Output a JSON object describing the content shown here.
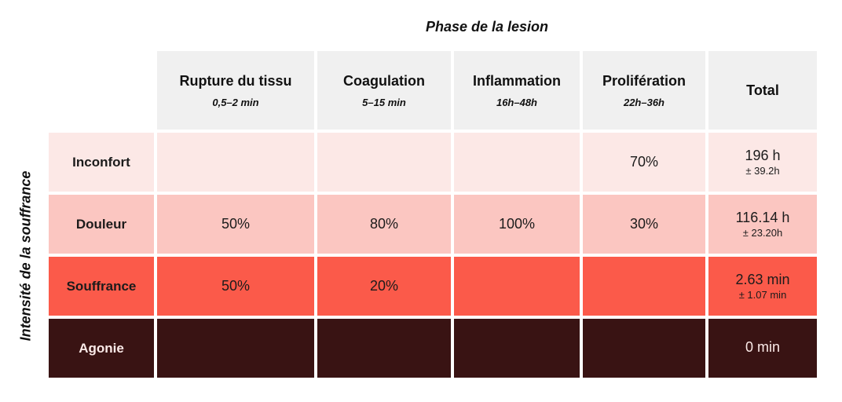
{
  "title": "Phase de la lesion",
  "y_axis_label": "Intensité de la souffrance",
  "colors": {
    "header_bg": "#f0f0f0",
    "row_inconfort": "#fce8e6",
    "row_douleur": "#fbc6c1",
    "row_souffrance": "#fb5a4a",
    "row_agonie": "#391313",
    "text_dark": "#1b1b1b",
    "text_light": "#fbeae8"
  },
  "columns": [
    {
      "label": "Rupture du tissu",
      "range": "0,5–2 min"
    },
    {
      "label": "Coagulation",
      "range": "5–15 min"
    },
    {
      "label": "Inflammation",
      "range": "16h–48h"
    },
    {
      "label": "Prolifération",
      "range": "22h–36h"
    },
    {
      "label": "Total",
      "range": ""
    }
  ],
  "rows": [
    {
      "label": "Inconfort",
      "bg": "#fce8e6",
      "fg": "#1b1b1b",
      "cells": [
        "",
        "",
        "",
        "70%"
      ],
      "total": "196 h",
      "total_err": "± 39.2h"
    },
    {
      "label": "Douleur",
      "bg": "#fbc6c1",
      "fg": "#1b1b1b",
      "cells": [
        "50%",
        "80%",
        "100%",
        "30%"
      ],
      "total": "116.14 h",
      "total_err": "± 23.20h"
    },
    {
      "label": "Souffrance",
      "bg": "#fb5a4a",
      "fg": "#1b1b1b",
      "cells": [
        "50%",
        "20%",
        "",
        ""
      ],
      "total": "2.63 min",
      "total_err": "± 1.07 min"
    },
    {
      "label": "Agonie",
      "bg": "#391313",
      "fg": "#fbeae8",
      "cells": [
        "",
        "",
        "",
        ""
      ],
      "total": "0 min",
      "total_err": ""
    }
  ],
  "chart_data": {
    "type": "heatmap",
    "title": "Phase de la lesion",
    "ylabel": "Intensité de la souffrance",
    "columns": [
      "Rupture du tissu",
      "Coagulation",
      "Inflammation",
      "Prolifération"
    ],
    "column_durations": [
      "0,5–2 min",
      "5–15 min",
      "16h–48h",
      "22h–36h"
    ],
    "rows": [
      "Inconfort",
      "Douleur",
      "Souffrance",
      "Agonie"
    ],
    "values_percent": [
      [
        null,
        null,
        null,
        70
      ],
      [
        50,
        80,
        100,
        30
      ],
      [
        50,
        20,
        null,
        null
      ],
      [
        null,
        null,
        null,
        null
      ]
    ],
    "totals": [
      {
        "value": "196 h",
        "error": "± 39.2h"
      },
      {
        "value": "116.14 h",
        "error": "± 23.20h"
      },
      {
        "value": "2.63 min",
        "error": "± 1.07 min"
      },
      {
        "value": "0 min",
        "error": ""
      }
    ],
    "row_colors": [
      "#fce8e6",
      "#fbc6c1",
      "#fb5a4a",
      "#391313"
    ],
    "legend_position": "none",
    "grid": false
  }
}
